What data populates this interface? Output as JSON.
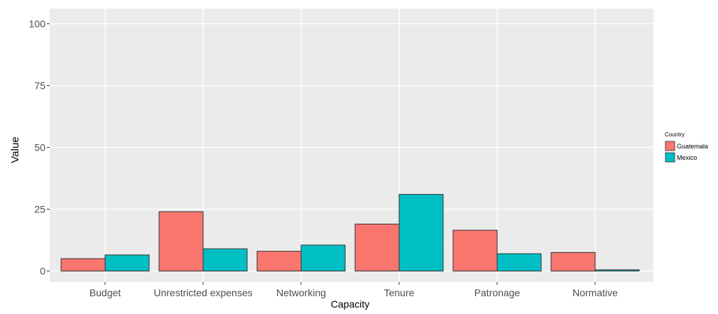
{
  "chart_data": {
    "type": "bar",
    "title": "",
    "xlabel": "Capacity",
    "ylabel": "Value",
    "ylim": [
      0,
      100
    ],
    "yticks": [
      0,
      25,
      50,
      75,
      100
    ],
    "grid": true,
    "legend": {
      "title": "Country",
      "position": "right"
    },
    "categories": [
      "Budget",
      "Unrestricted expenses",
      "Networking",
      "Tenure",
      "Patronage",
      "Normative"
    ],
    "series": [
      {
        "name": "Guatemala",
        "color": "#F8766D",
        "values": [
          5,
          24,
          8,
          19,
          16.5,
          7.5
        ]
      },
      {
        "name": "Mexico",
        "color": "#00BFC4",
        "values": [
          6.5,
          9,
          10.5,
          31,
          7,
          0.5
        ]
      }
    ]
  }
}
